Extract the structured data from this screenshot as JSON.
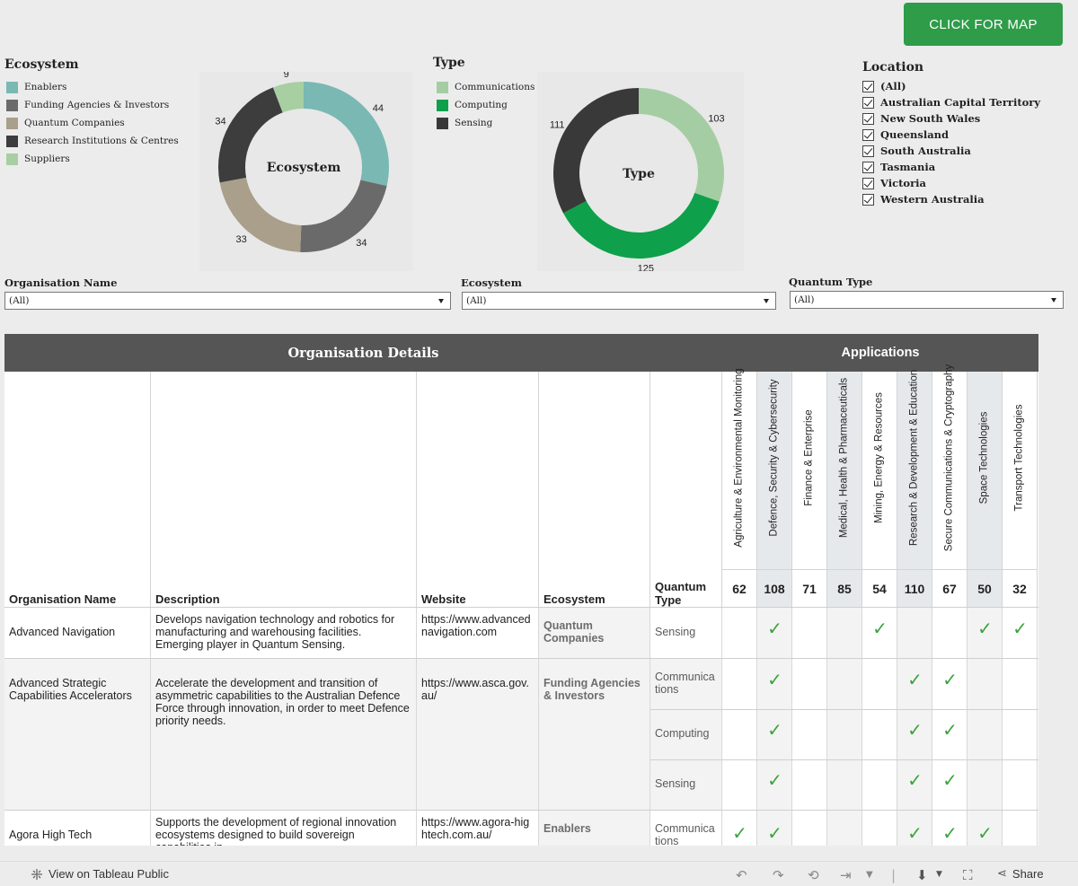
{
  "header": {
    "map_button": "CLICK FOR MAP"
  },
  "ecosystem_legend": {
    "title": "Ecosystem",
    "items": [
      {
        "label": "Enablers",
        "color": "#7ab8b3"
      },
      {
        "label": "Funding Agencies & Investors",
        "color": "#6a6a6a"
      },
      {
        "label": "Quantum Companies",
        "color": "#a99f8b"
      },
      {
        "label": "Research Institutions & Centres",
        "color": "#3d3d3d"
      },
      {
        "label": "Suppliers",
        "color": "#a7cfa2"
      }
    ]
  },
  "type_legend": {
    "title": "Type",
    "items": [
      {
        "label": "Communications",
        "color": "#a5cda3"
      },
      {
        "label": "Computing",
        "color": "#0ea04a"
      },
      {
        "label": "Sensing",
        "color": "#393939"
      }
    ]
  },
  "chart_data": [
    {
      "type": "pie",
      "title": "Ecosystem",
      "categories": [
        "Enablers",
        "Funding Agencies & Investors",
        "Quantum Companies",
        "Research Institutions & Centres",
        "Suppliers"
      ],
      "values": [
        44,
        34,
        33,
        34,
        9
      ],
      "colors": [
        "#7ab8b3",
        "#6a6a6a",
        "#a99f8b",
        "#3d3d3d",
        "#a7cfa2"
      ]
    },
    {
      "type": "pie",
      "title": "Type",
      "categories": [
        "Communications",
        "Computing",
        "Sensing"
      ],
      "values": [
        103,
        125,
        111
      ],
      "colors": [
        "#a5cda3",
        "#0ea04a",
        "#393939"
      ]
    }
  ],
  "location": {
    "title": "Location",
    "options": [
      "(All)",
      "Australian Capital Territory",
      "New South Wales",
      "Queensland",
      "South Australia",
      "Tasmania",
      "Victoria",
      "Western Australia"
    ]
  },
  "filters": {
    "org_name": {
      "label": "Organisation Name",
      "value": "(All)"
    },
    "ecosystem": {
      "label": "Ecosystem",
      "value": "(All)"
    },
    "quantum_type": {
      "label": "Quantum Type",
      "value": "(All)"
    }
  },
  "table": {
    "band_org": "Organisation Details",
    "band_app": "Applications",
    "columns": [
      "Organisation Name",
      "Description",
      "Website",
      "Ecosystem",
      "Quantum Type"
    ],
    "applications": [
      {
        "name": "Agriculture & Environmental Monitoring",
        "count": "62"
      },
      {
        "name": "Defence, Security & Cybersecurity",
        "count": "108"
      },
      {
        "name": "Finance & Enterprise",
        "count": "71"
      },
      {
        "name": "Medical, Health & Pharmaceuticals",
        "count": "85"
      },
      {
        "name": "Mining, Energy & Resources",
        "count": "54"
      },
      {
        "name": "Research & Development & Education",
        "count": "110"
      },
      {
        "name": "Secure Communications & Cryptography",
        "count": "67"
      },
      {
        "name": "Space Technologies",
        "count": "50"
      },
      {
        "name": "Transport Technologies",
        "count": "32"
      }
    ],
    "rows": [
      {
        "name": "Advanced Navigation",
        "description": "Develops navigation technology and robotics for manufacturing and warehousing facilities. Emerging player in Quantum Sensing.",
        "website": "https://www.advancednavigation.com",
        "ecosystem": "Quantum Companies",
        "types": [
          {
            "label": "Sensing",
            "checks": [
              false,
              true,
              false,
              false,
              true,
              false,
              false,
              true,
              true
            ]
          }
        ]
      },
      {
        "name": "Advanced Strategic Capabilities Accelerators",
        "description": "Accelerate the development and transition of asymmetric capabilities to the Australian Defence Force through innovation, in order to meet Defence priority needs.",
        "website": "https://www.asca.gov.au/",
        "ecosystem": "Funding Agencies & Investors",
        "types": [
          {
            "label": "Communications",
            "checks": [
              false,
              true,
              false,
              false,
              false,
              true,
              true,
              false,
              false
            ]
          },
          {
            "label": "Computing",
            "checks": [
              false,
              true,
              false,
              false,
              false,
              true,
              true,
              false,
              false
            ]
          },
          {
            "label": "Sensing",
            "checks": [
              false,
              true,
              false,
              false,
              false,
              true,
              true,
              false,
              false
            ]
          }
        ]
      },
      {
        "name": "Agora High Tech",
        "description": "Supports the development of regional innovation ecosystems designed to build sovereign capabilities in",
        "website": "https://www.agora-hightech.com.au/",
        "ecosystem": "Enablers",
        "types": [
          {
            "label": "Communications",
            "checks": [
              true,
              true,
              false,
              false,
              false,
              true,
              true,
              true,
              false
            ]
          }
        ]
      }
    ]
  },
  "footer": {
    "view_on": "View on Tableau Public",
    "share": "Share"
  }
}
